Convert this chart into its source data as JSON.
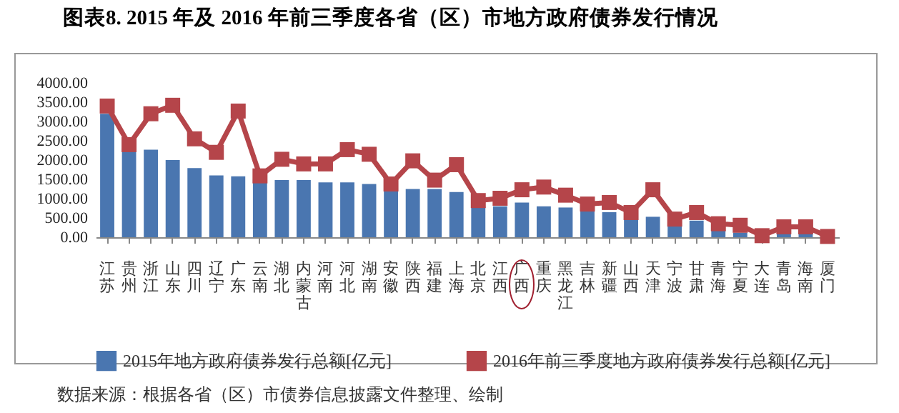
{
  "chart_data": {
    "type": "bar",
    "title": "图表8.   2015 年及 2016 年前三季度各省（区）市地方政府债券发行情况",
    "categories": [
      "江苏",
      "贵州",
      "浙江",
      "山东",
      "四川",
      "辽宁",
      "广东",
      "云南",
      "湖北",
      "内蒙古",
      "河南",
      "河北",
      "湖南",
      "安徽",
      "陕西",
      "福建",
      "上海",
      "北京",
      "江西",
      "广西",
      "重庆",
      "黑龙江",
      "吉林",
      "新疆",
      "山西",
      "天津",
      "宁波",
      "甘肃",
      "青海",
      "宁夏",
      "大连",
      "青岛",
      "海南",
      "厦门"
    ],
    "series": [
      {
        "name": "2015年地方政府债券发行总额[亿元]",
        "color": "#4a76b0",
        "values": [
          3200,
          2300,
          2270,
          2000,
          1790,
          1600,
          1580,
          1500,
          1480,
          1480,
          1420,
          1420,
          1380,
          1200,
          1250,
          1250,
          1170,
          800,
          800,
          900,
          800,
          770,
          680,
          650,
          490,
          530,
          310,
          430,
          190,
          120,
          null,
          120,
          100,
          null
        ]
      },
      {
        "name": "2016年前三季度地方政府债券发行总额[亿元]",
        "type": "line",
        "color": "#b5454a",
        "values": [
          3400,
          2400,
          3200,
          3420,
          2550,
          2200,
          3270,
          1590,
          2020,
          1900,
          1900,
          2270,
          2150,
          1380,
          1980,
          1480,
          1880,
          950,
          1010,
          1230,
          1300,
          1090,
          860,
          900,
          640,
          1230,
          470,
          640,
          350,
          310,
          40,
          270,
          270,
          20
        ]
      }
    ],
    "ylim": [
      0,
      4000
    ],
    "yticks": [
      {
        "value": 0,
        "label": "0.00"
      },
      {
        "value": 500,
        "label": "500.00"
      },
      {
        "value": 1000,
        "label": "1000.00"
      },
      {
        "value": 1500,
        "label": "1500.00"
      },
      {
        "value": 2000,
        "label": "2000.00"
      },
      {
        "value": 2500,
        "label": "2500.00"
      },
      {
        "value": 3000,
        "label": "3000.00"
      },
      {
        "value": 3500,
        "label": "3500.00"
      },
      {
        "value": 4000,
        "label": "4000.00"
      }
    ],
    "grid": false,
    "legend": "bottom",
    "marker": "square",
    "annotations": [
      "数据来源：根据各省（区）市债券信息披露文件整理、绘制"
    ]
  }
}
